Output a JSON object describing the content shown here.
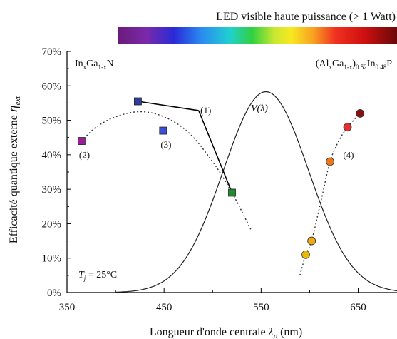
{
  "chart_data": {
    "type": "scatter",
    "title": "LED visible haute puissance (> 1 Watt)",
    "xlabel": "Longueur d'onde centrale",
    "xlabel_symbol": "λ",
    "xlabel_sub": "p",
    "xlabel_unit": "(nm)",
    "ylabel": "Efficacité quantique externe",
    "ylabel_symbol": "η",
    "ylabel_sub": "ext",
    "xlim": [
      350,
      690
    ],
    "ylim": [
      0,
      70
    ],
    "x_ticks": [
      350,
      450,
      550,
      650
    ],
    "x_tick_labels": [
      "350",
      "450",
      "550",
      "650"
    ],
    "y_ticks": [
      0,
      10,
      20,
      30,
      40,
      50,
      60,
      70
    ],
    "y_tick_labels": [
      "0%",
      "10%",
      "20%",
      "30%",
      "40%",
      "50%",
      "60%",
      "70%"
    ],
    "grid": false,
    "material_left": {
      "base": "In",
      "sub1": "x",
      "mid": "Ga",
      "sub2": "1-x",
      "end": "N"
    },
    "material_right": {
      "p1": "(Al",
      "sub1": "x",
      "p2": "Ga",
      "sub2": "1-x",
      "p3": ")",
      "sub3": "0.52",
      "p4": "In",
      "sub4": "0.48",
      "p5": "P"
    },
    "temperature": {
      "symbol": "T",
      "sub": "j",
      "value": " = 25°C"
    },
    "vlambda_label": "V(λ)",
    "vlambda": {
      "peak_nm": 555,
      "peak_value": 58.3,
      "sigma_nm": 44
    },
    "series": [
      {
        "group": "InGaN",
        "points": [
          {
            "x": 365,
            "y": 44,
            "color": "#9b1c9b"
          },
          {
            "x": 423,
            "y": 55.5,
            "color": "#2e3a9e"
          },
          {
            "x": 449,
            "y": 47,
            "color": "#3b4fd6"
          },
          {
            "x": 520,
            "y": 29,
            "color": "#1f8a2e"
          }
        ]
      },
      {
        "group": "AlGaInP",
        "points": [
          {
            "x": 596,
            "y": 11,
            "color": "#e8b800"
          },
          {
            "x": 602,
            "y": 15,
            "color": "#f0a810"
          },
          {
            "x": 621,
            "y": 38,
            "color": "#e87820"
          },
          {
            "x": 639,
            "y": 48,
            "color": "#e03030"
          },
          {
            "x": 652,
            "y": 52,
            "color": "#8a1010"
          }
        ]
      }
    ],
    "trend_curves": [
      {
        "points": [
          [
            365,
            44
          ],
          [
            380,
            48
          ],
          [
            400,
            51
          ],
          [
            425,
            52.5
          ],
          [
            450,
            51
          ],
          [
            475,
            46.5
          ],
          [
            500,
            38
          ],
          [
            520,
            29
          ],
          [
            540,
            18
          ]
        ]
      },
      {
        "points": [
          [
            590,
            5
          ],
          [
            596,
            11
          ],
          [
            602,
            15
          ],
          [
            612,
            27
          ],
          [
            621,
            38
          ],
          [
            630,
            44
          ],
          [
            639,
            48
          ],
          [
            652,
            52
          ]
        ]
      }
    ],
    "annotations": [
      {
        "text": "(1)",
        "x": 493,
        "y": 52,
        "leaders": [
          [
            423,
            55.5
          ],
          [
            520,
            29
          ]
        ]
      },
      {
        "text": "(2)",
        "x": 368,
        "y": 39
      },
      {
        "text": "(3)",
        "x": 452,
        "y": 42
      },
      {
        "text": "(4)",
        "x": 640,
        "y": 39
      }
    ]
  }
}
